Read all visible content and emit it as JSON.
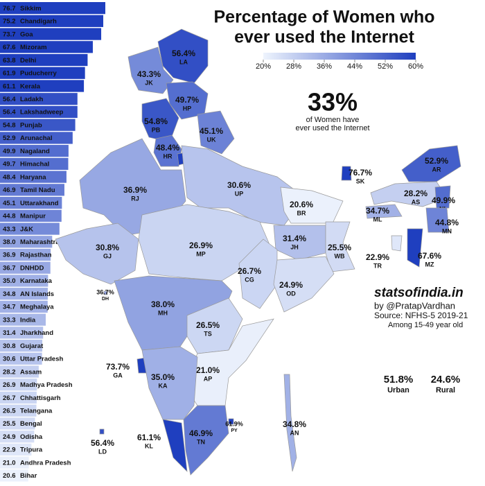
{
  "title": [
    "Percentage of Women who",
    "ever used the Internet"
  ],
  "legend": {
    "ticks": [
      {
        "value": 20,
        "label": "20%"
      },
      {
        "value": 28,
        "label": "28%"
      },
      {
        "value": 36,
        "label": "36%"
      },
      {
        "value": 44,
        "label": "44%"
      },
      {
        "value": 52,
        "label": "52%"
      },
      {
        "value": 60,
        "label": "60%"
      }
    ],
    "colors": [
      "#eef4fd",
      "#1f3fbf"
    ]
  },
  "headline": {
    "value": "33%",
    "text": [
      "of Women have",
      "ever used the Internet"
    ]
  },
  "credits": {
    "site": "statsofindia.in",
    "by": "by @PratapVardhan",
    "source": "Source: NFHS-5 2019-21",
    "note": "Among 15-49 year old"
  },
  "split": [
    {
      "value": "51.8%",
      "label": "Urban"
    },
    {
      "value": "24.6%",
      "label": "Rural"
    }
  ],
  "chart_data": {
    "type": "bar",
    "orientation": "horizontal",
    "categories": [
      "Sikkim",
      "Chandigarh",
      "Goa",
      "Mizoram",
      "Delhi",
      "Puducherry",
      "Kerala",
      "Ladakh",
      "Lakshadweep",
      "Punjab",
      "Arunachal",
      "Nagaland",
      "Himachal",
      "Haryana",
      "Tamil Nadu",
      "Uttarakhand",
      "Manipur",
      "J&K",
      "Maharashtra",
      "Rajasthan",
      "DNHDD",
      "Karnataka",
      "AN Islands",
      "Meghalaya",
      "India",
      "Jharkhand",
      "Gujarat",
      "Uttar Pradesh",
      "Assam",
      "Madhya Pradesh",
      "Chhattisgarh",
      "Telangana",
      "Bengal",
      "Odisha",
      "Tripura",
      "Andhra Pradesh",
      "Bihar"
    ],
    "values": [
      76.7,
      75.2,
      73.7,
      67.6,
      63.8,
      61.9,
      61.1,
      56.4,
      56.4,
      54.8,
      52.9,
      49.9,
      49.7,
      48.4,
      46.9,
      45.1,
      44.8,
      43.3,
      38.0,
      36.9,
      36.7,
      35.0,
      34.8,
      34.7,
      33.3,
      31.4,
      30.8,
      30.6,
      28.2,
      26.9,
      26.7,
      26.5,
      25.5,
      24.9,
      22.9,
      21.0,
      20.6
    ],
    "value_labels": [
      "76.7",
      "75.2",
      "73.7",
      "67.6",
      "63.8",
      "61.9",
      "61.1",
      "56.4",
      "56.4",
      "54.8",
      "52.9",
      "49.9",
      "49.7",
      "48.4",
      "46.9",
      "45.1",
      "44.8",
      "43.3",
      "38.0",
      "36.9",
      "36.7",
      "35.0",
      "34.8",
      "34.7",
      "33.3",
      "31.4",
      "30.8",
      "30.6",
      "28.2",
      "26.9",
      "26.7",
      "26.5",
      "25.5",
      "24.9",
      "22.9",
      "21.0",
      "20.6"
    ]
  },
  "map": {
    "regions": [
      {
        "code": "LA",
        "value": 56.4,
        "label": "56.4%"
      },
      {
        "code": "JK",
        "value": 43.3,
        "label": "43.3%"
      },
      {
        "code": "HP",
        "value": 49.7,
        "label": "49.7%"
      },
      {
        "code": "PB",
        "value": 54.8,
        "label": "54.8%"
      },
      {
        "code": "UK",
        "value": 45.1,
        "label": "45.1%"
      },
      {
        "code": "HR",
        "value": 48.4,
        "label": "48.4%"
      },
      {
        "code": "DL",
        "value": 63.8,
        "label": "63.8%"
      },
      {
        "code": "RJ",
        "value": 36.9,
        "label": "36.9%"
      },
      {
        "code": "UP",
        "value": 30.6,
        "label": "30.6%"
      },
      {
        "code": "BR",
        "value": 20.6,
        "label": "20.6%"
      },
      {
        "code": "SK",
        "value": 76.7,
        "label": "76.7%"
      },
      {
        "code": "AR",
        "value": 52.9,
        "label": "52.9%"
      },
      {
        "code": "AS",
        "value": 28.2,
        "label": "28.2%"
      },
      {
        "code": "NL",
        "value": 49.9,
        "label": "49.9%"
      },
      {
        "code": "ML",
        "value": 34.7,
        "label": "34.7%"
      },
      {
        "code": "MN",
        "value": 44.8,
        "label": "44.8%"
      },
      {
        "code": "MZ",
        "value": 67.6,
        "label": "67.6%"
      },
      {
        "code": "TR",
        "value": 22.9,
        "label": "22.9%"
      },
      {
        "code": "JH",
        "value": 31.4,
        "label": "31.4%"
      },
      {
        "code": "WB",
        "value": 25.5,
        "label": "25.5%"
      },
      {
        "code": "GJ",
        "value": 30.8,
        "label": "30.8%"
      },
      {
        "code": "MP",
        "value": 26.9,
        "label": "26.9%"
      },
      {
        "code": "CG",
        "value": 26.7,
        "label": "26.7%"
      },
      {
        "code": "OD",
        "value": 24.9,
        "label": "24.9%"
      },
      {
        "code": "MH",
        "value": 38.0,
        "label": "38.0%"
      },
      {
        "code": "DH",
        "value": 36.7,
        "label": "36.7%"
      },
      {
        "code": "TS",
        "value": 26.5,
        "label": "26.5%"
      },
      {
        "code": "AP",
        "value": 21.0,
        "label": "21.0%"
      },
      {
        "code": "GA",
        "value": 73.7,
        "label": "73.7%"
      },
      {
        "code": "KA",
        "value": 35.0,
        "label": "35.0%"
      },
      {
        "code": "KL",
        "value": 61.1,
        "label": "61.1%"
      },
      {
        "code": "TN",
        "value": 46.9,
        "label": "46.9%"
      },
      {
        "code": "PY",
        "value": 61.9,
        "label": "61.9%"
      },
      {
        "code": "AN",
        "value": 34.8,
        "label": "34.8%"
      },
      {
        "code": "LD",
        "value": 56.4,
        "label": "56.4%"
      }
    ]
  }
}
